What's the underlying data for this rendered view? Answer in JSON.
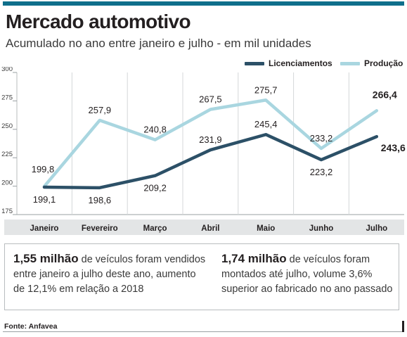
{
  "header": {
    "title": "Mercado automotivo",
    "subtitle": "Acumulado no ano entre janeiro e julho - em mil unidades"
  },
  "legend": {
    "licenciamentos": "Licenciamentos",
    "producao": "Produção"
  },
  "colors": {
    "licenciamentos": "#2c5067",
    "producao": "#a9d6e0",
    "accent": "#0f6f8b",
    "axis_band": "#e3e5e6"
  },
  "chart_data": {
    "type": "line",
    "categories": [
      "Janeiro",
      "Fevereiro",
      "Março",
      "Abril",
      "Maio",
      "Junho",
      "Julho"
    ],
    "series": [
      {
        "name": "Licenciamentos",
        "values": [
          199.1,
          198.6,
          209.2,
          231.9,
          245.4,
          223.2,
          243.6
        ],
        "labels": [
          "199,1",
          "198,6",
          "209,2",
          "231,9",
          "245,4",
          "223,2",
          "243,6"
        ]
      },
      {
        "name": "Produção",
        "values": [
          199.8,
          257.9,
          240.8,
          267.5,
          275.7,
          233.2,
          266.4
        ],
        "labels": [
          "199,8",
          "257,9",
          "240,8",
          "267,5",
          "275,7",
          "233,2",
          "266,4"
        ]
      }
    ],
    "yticks": [
      175,
      200,
      225,
      250,
      275,
      300
    ],
    "ylim": [
      175,
      300
    ],
    "grid": "vertical",
    "legend_position": "top-right"
  },
  "info": {
    "left_highlight": "1,55 milhão",
    "left_text": " de veículos foram vendidos entre  janeiro a julho deste ano, aumento de 12,1% em relação a 2018",
    "right_highlight": "1,74 milhão",
    "right_text": " de veículos foram montados até julho, volume 3,6% superior ao fabricado no ano passado"
  },
  "footer": {
    "source": "Fonte: Anfavea"
  }
}
